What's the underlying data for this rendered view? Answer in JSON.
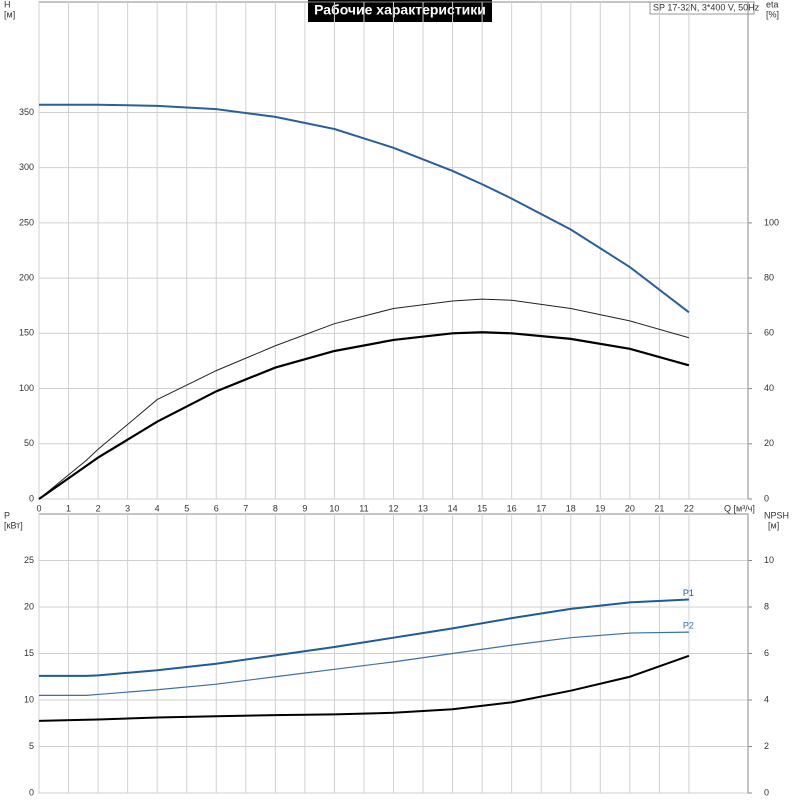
{
  "chart_data": [
    {
      "type": "line",
      "title": "Рабочие характеристики",
      "subtitle": "SP 17-32N, 3*400 V, 50Hz",
      "ylabel": "H",
      "yunit": "[м]",
      "y2label": "eta",
      "y2unit": "[%]",
      "xlabel": "Q [м³/ч]",
      "xlim": [
        0,
        24
      ],
      "xticks": [
        0,
        1,
        2,
        3,
        4,
        5,
        6,
        7,
        8,
        9,
        10,
        11,
        12,
        13,
        14,
        15,
        16,
        17,
        18,
        19,
        20,
        21,
        22
      ],
      "ylim": [
        0,
        450
      ],
      "yticks": [
        0,
        50,
        100,
        150,
        200,
        250,
        300,
        350
      ],
      "y2lim": [
        0,
        180
      ],
      "y2ticks": [
        0,
        20,
        40,
        60,
        80,
        100
      ],
      "grid": true,
      "x": [
        0,
        1.6,
        2,
        4,
        6,
        8,
        10,
        12,
        14,
        15,
        16,
        18,
        20,
        22
      ],
      "series": [
        {
          "color": "#2a5f9a",
          "values": [
            357,
            357,
            357,
            356,
            353,
            346,
            335,
            318,
            297,
            285,
            272,
            244,
            210,
            169
          ]
        },
        {
          "color": "#222222",
          "axis": "y2",
          "values": [
            0,
            14,
            18,
            36,
            46.5,
            55.5,
            63.5,
            69,
            71.7,
            72.4,
            72,
            69,
            64.5,
            58.4
          ]
        },
        {
          "color": "#000000",
          "axis": "y2",
          "values": [
            0,
            12,
            15,
            28,
            39,
            47.6,
            53.6,
            57.6,
            60,
            60.4,
            60,
            58,
            54.4,
            48.4
          ]
        }
      ]
    },
    {
      "type": "line",
      "ylabel": "P",
      "yunit": "[кВт]",
      "y2label": "NPSH",
      "y2unit": "[м]",
      "xlim": [
        0,
        24
      ],
      "xticks": [
        0,
        1,
        2,
        3,
        4,
        5,
        6,
        7,
        8,
        9,
        10,
        11,
        12,
        13,
        14,
        15,
        16,
        17,
        18,
        19,
        20,
        21,
        22
      ],
      "ylim": [
        0,
        30
      ],
      "yticks": [
        0,
        5,
        10,
        15,
        20,
        25
      ],
      "y2lim": [
        0,
        12
      ],
      "y2ticks": [
        0,
        2,
        4,
        6,
        8,
        10
      ],
      "grid": true,
      "x": [
        0,
        1.6,
        2,
        4,
        6,
        8,
        10,
        12,
        14,
        16,
        18,
        20,
        22
      ],
      "series": [
        {
          "name": "P1",
          "color": "#1f5a9a",
          "values": [
            12.6,
            12.6,
            12.65,
            13.2,
            13.9,
            14.8,
            15.7,
            16.7,
            17.7,
            18.8,
            19.8,
            20.5,
            20.8
          ]
        },
        {
          "name": "P2",
          "color": "#3b6fa8",
          "values": [
            10.5,
            10.5,
            10.6,
            11.1,
            11.7,
            12.5,
            13.3,
            14.1,
            15,
            15.9,
            16.7,
            17.2,
            17.3
          ]
        },
        {
          "color": "#000000",
          "axis": "y2",
          "values": [
            3.1,
            3.15,
            3.16,
            3.25,
            3.3,
            3.35,
            3.38,
            3.45,
            3.6,
            3.9,
            4.4,
            5.0,
            5.9
          ]
        }
      ]
    }
  ]
}
